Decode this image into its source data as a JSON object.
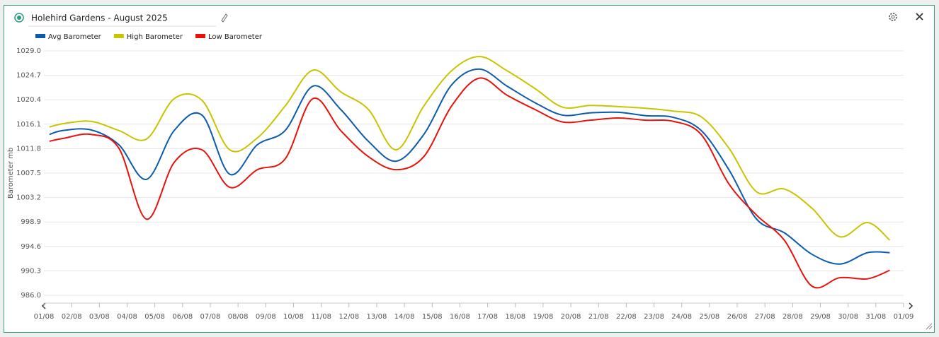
{
  "chart_data": {
    "type": "line",
    "title": "Holehird Gardens - August 2025",
    "y_label": "Barometer mb",
    "x": [
      0.2,
      0.7,
      1.7,
      2.7,
      3.7,
      4.7,
      5.7,
      6.7,
      7.7,
      8.7,
      9.7,
      10.7,
      11.7,
      12.7,
      13.7,
      14.7,
      15.7,
      16.7,
      17.7,
      18.7,
      19.7,
      20.7,
      21.7,
      22.7,
      23.7,
      24.7,
      25.7,
      26.7,
      27.7,
      28.7,
      29.7,
      30.5
    ],
    "series": [
      {
        "name": "Avg Barometer",
        "color": "#0b5cad",
        "values": [
          1014.3,
          1015.0,
          1015.1,
          1012.5,
          1006.4,
          1015.0,
          1017.7,
          1007.3,
          1012.5,
          1015.0,
          1022.8,
          1018.7,
          1013.1,
          1009.6,
          1014.3,
          1023.0,
          1025.8,
          1022.8,
          1019.9,
          1017.7,
          1018.1,
          1018.2,
          1017.6,
          1017.3,
          1015.0,
          1008.1,
          999.4,
          997.0,
          993.2,
          991.5,
          993.5,
          993.5
        ]
      },
      {
        "name": "High Barometer",
        "color": "#c9c400",
        "values": [
          1015.6,
          1016.2,
          1016.6,
          1015.0,
          1013.5,
          1020.6,
          1020.3,
          1011.6,
          1013.7,
          1019.3,
          1025.6,
          1021.8,
          1018.7,
          1011.6,
          1019.3,
          1025.5,
          1028.0,
          1025.5,
          1022.4,
          1019.1,
          1019.4,
          1019.2,
          1018.9,
          1018.4,
          1017.4,
          1011.9,
          1004.2,
          1004.7,
          1001.3,
          996.3,
          998.8,
          995.7
        ]
      },
      {
        "name": "Low Barometer",
        "color": "#e8120c",
        "values": [
          1013.1,
          1013.6,
          1014.3,
          1011.9,
          999.4,
          1009.4,
          1011.6,
          1005.0,
          1008.1,
          1010.0,
          1020.6,
          1015.0,
          1010.4,
          1008.1,
          1010.4,
          1019.3,
          1024.2,
          1021.2,
          1018.7,
          1016.5,
          1016.8,
          1017.2,
          1016.8,
          1016.6,
          1014.3,
          1005.6,
          1000.1,
          995.7,
          987.6,
          989.1,
          988.9,
          990.4
        ]
      }
    ],
    "xlim": [
      0,
      31
    ],
    "xticks": [
      {
        "value": 0,
        "label": "01/08"
      },
      {
        "value": 1,
        "label": "02/08"
      },
      {
        "value": 2,
        "label": "03/08"
      },
      {
        "value": 3,
        "label": "04/08"
      },
      {
        "value": 4,
        "label": "05/08"
      },
      {
        "value": 5,
        "label": "06/08"
      },
      {
        "value": 6,
        "label": "07/08"
      },
      {
        "value": 7,
        "label": "08/08"
      },
      {
        "value": 8,
        "label": "09/08"
      },
      {
        "value": 9,
        "label": "10/08"
      },
      {
        "value": 10,
        "label": "11/08"
      },
      {
        "value": 11,
        "label": "12/08"
      },
      {
        "value": 12,
        "label": "13/08"
      },
      {
        "value": 13,
        "label": "14/08"
      },
      {
        "value": 14,
        "label": "15/08"
      },
      {
        "value": 15,
        "label": "16/08"
      },
      {
        "value": 16,
        "label": "17/08"
      },
      {
        "value": 17,
        "label": "18/08"
      },
      {
        "value": 18,
        "label": "19/08"
      },
      {
        "value": 19,
        "label": "20/08"
      },
      {
        "value": 20,
        "label": "21/08"
      },
      {
        "value": 21,
        "label": "22/08"
      },
      {
        "value": 22,
        "label": "23/08"
      },
      {
        "value": 23,
        "label": "24/08"
      },
      {
        "value": 24,
        "label": "25/08"
      },
      {
        "value": 25,
        "label": "26/08"
      },
      {
        "value": 26,
        "label": "27/08"
      },
      {
        "value": 27,
        "label": "28/08"
      },
      {
        "value": 28,
        "label": "29/08"
      },
      {
        "value": 29,
        "label": "30/08"
      },
      {
        "value": 30,
        "label": "31/08"
      },
      {
        "value": 31,
        "label": "01/09"
      }
    ],
    "ylim": [
      986.0,
      1029.0
    ],
    "yticks": [
      {
        "value": 1029.0,
        "label": "1029.0"
      },
      1024.7,
      1020.4,
      1016.1,
      1011.8,
      1007.5,
      1003.2,
      998.9,
      994.6,
      990.3,
      {
        "value": 986.0,
        "label": "986.0"
      }
    ],
    "grid": true,
    "legend": "top-left"
  }
}
